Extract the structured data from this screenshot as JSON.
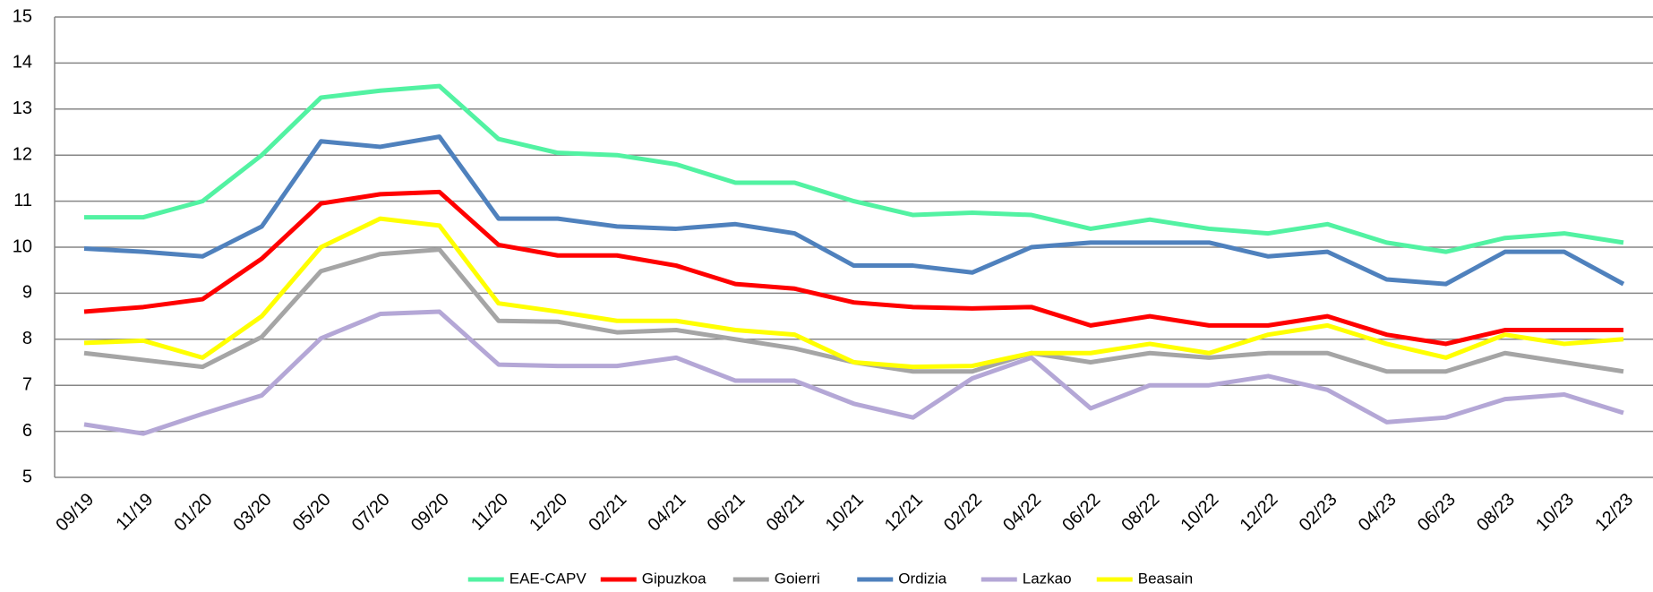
{
  "chart_data": {
    "type": "line",
    "categories": [
      "09/19",
      "11/19",
      "01/20",
      "03/20",
      "05/20",
      "07/20",
      "09/20",
      "11/20",
      "12/20",
      "02/21",
      "04/21",
      "06/21",
      "08/21",
      "10/21",
      "12/21",
      "02/22",
      "04/22",
      "06/22",
      "08/22",
      "10/22",
      "12/22",
      "02/23",
      "04/23",
      "06/23",
      "08/23",
      "10/23",
      "12/23"
    ],
    "series": [
      {
        "name": "EAE-CAPV",
        "color": "#52f2a2",
        "values": [
          10.65,
          10.65,
          11.0,
          12.0,
          13.25,
          13.4,
          13.5,
          12.35,
          12.05,
          12.0,
          11.8,
          11.4,
          11.4,
          11.0,
          10.7,
          10.75,
          10.7,
          10.4,
          10.6,
          10.4,
          10.3,
          10.5,
          10.1,
          9.9,
          10.2,
          10.3,
          10.1
        ]
      },
      {
        "name": "Gipuzkoa",
        "color": "#ff0000",
        "values": [
          8.6,
          8.7,
          8.87,
          9.75,
          10.95,
          11.15,
          11.2,
          10.05,
          9.82,
          9.82,
          9.6,
          9.2,
          9.1,
          8.8,
          8.7,
          8.67,
          8.7,
          8.3,
          8.5,
          8.3,
          8.3,
          8.5,
          8.1,
          7.9,
          8.2,
          8.2,
          8.2
        ]
      },
      {
        "name": "Goierri",
        "color": "#a5a5a5",
        "values": [
          7.7,
          7.55,
          7.4,
          8.05,
          9.48,
          9.85,
          9.95,
          8.4,
          8.38,
          8.15,
          8.2,
          8.0,
          7.8,
          7.5,
          7.3,
          7.3,
          7.7,
          7.5,
          7.7,
          7.6,
          7.7,
          7.7,
          7.3,
          7.3,
          7.7,
          7.5,
          7.3
        ]
      },
      {
        "name": "Ordizia",
        "color": "#4f81bd",
        "values": [
          9.97,
          9.9,
          9.8,
          10.45,
          12.3,
          12.18,
          12.4,
          10.62,
          10.62,
          10.45,
          10.4,
          10.5,
          10.3,
          9.6,
          9.6,
          9.45,
          10.0,
          10.1,
          10.1,
          10.1,
          9.8,
          9.9,
          9.3,
          9.2,
          9.9,
          9.9,
          9.2
        ]
      },
      {
        "name": "Lazkao",
        "color": "#b4a7d6",
        "values": [
          6.15,
          5.95,
          6.38,
          6.78,
          8.02,
          8.55,
          8.6,
          7.45,
          7.42,
          7.42,
          7.6,
          7.1,
          7.1,
          6.6,
          6.3,
          7.15,
          7.6,
          6.5,
          7.0,
          7.0,
          7.2,
          6.9,
          6.2,
          6.3,
          6.7,
          6.8,
          6.4
        ]
      },
      {
        "name": "Beasain",
        "color": "#ffff00",
        "values": [
          7.92,
          7.97,
          7.6,
          8.5,
          10.0,
          10.62,
          10.47,
          8.78,
          8.6,
          8.4,
          8.4,
          8.2,
          8.1,
          7.5,
          7.4,
          7.42,
          7.7,
          7.7,
          7.9,
          7.7,
          8.1,
          8.3,
          7.9,
          7.6,
          8.1,
          7.9,
          8.0
        ]
      }
    ],
    "ylim": [
      5,
      15
    ],
    "yticks": [
      5,
      6,
      7,
      8,
      9,
      10,
      11,
      12,
      13,
      14,
      15
    ],
    "grid": true,
    "legend": "bottom"
  }
}
